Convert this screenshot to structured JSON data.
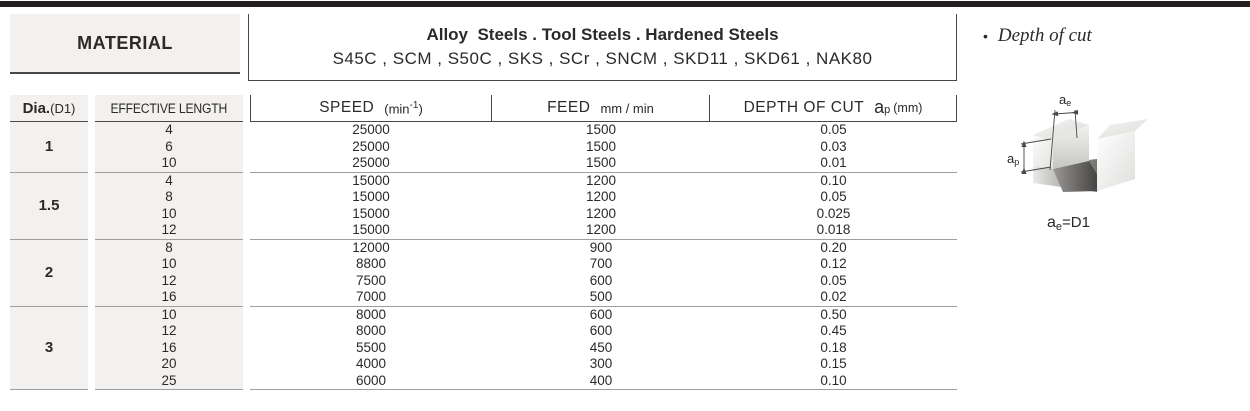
{
  "colors": {
    "top_rule": "#231f1e",
    "cell_bg": "#f2f1ef",
    "box_border": "#4a4745",
    "group_separator": "#a09e9c",
    "text": "#2b2a28"
  },
  "header": {
    "material_label": "MATERIAL",
    "steel_class": "Alloy  Steels . Tool Steels . Hardened Steels",
    "steel_grades": "S45C , SCM , S50C , SKS , SCr , SNCM , SKD11 , SKD61 , NAK80"
  },
  "columns": {
    "dia_label": "Dia.",
    "dia_sub": "(D1)",
    "length_label": "EFFECTIVE LENGTH",
    "speed_label": "SPEED",
    "speed_unit_pre": "(min",
    "speed_unit_sup": "-1",
    "speed_unit_post": ")",
    "feed_label": "FEED",
    "feed_unit": "mm / min",
    "depth_label": "DEPTH OF CUT",
    "depth_symbol": "a",
    "depth_symbol_sub": "p",
    "depth_unit": "(mm)"
  },
  "groups": [
    {
      "dia": "1",
      "rows": [
        [
          "4",
          "25000",
          "1500",
          "0.05"
        ],
        [
          "6",
          "25000",
          "1500",
          "0.03"
        ],
        [
          "10",
          "25000",
          "1500",
          "0.01"
        ]
      ]
    },
    {
      "dia": "1.5",
      "rows": [
        [
          "4",
          "15000",
          "1200",
          "0.10"
        ],
        [
          "8",
          "15000",
          "1200",
          "0.05"
        ],
        [
          "10",
          "15000",
          "1200",
          "0.025"
        ],
        [
          "12",
          "15000",
          "1200",
          "0.018"
        ]
      ]
    },
    {
      "dia": "2",
      "rows": [
        [
          "8",
          "12000",
          "900",
          "0.20"
        ],
        [
          "10",
          "8800",
          "700",
          "0.12"
        ],
        [
          "12",
          "7500",
          "600",
          "0.05"
        ],
        [
          "16",
          "7000",
          "500",
          "0.02"
        ]
      ]
    },
    {
      "dia": "3",
      "rows": [
        [
          "10",
          "8000",
          "600",
          "0.50"
        ],
        [
          "12",
          "8000",
          "600",
          "0.45"
        ],
        [
          "16",
          "5500",
          "450",
          "0.18"
        ],
        [
          "20",
          "4000",
          "300",
          "0.15"
        ],
        [
          "25",
          "6000",
          "400",
          "0.10"
        ]
      ]
    }
  ],
  "side": {
    "bullet": "•",
    "note": "Depth of cut",
    "ae_base": "a",
    "ae_sub": "e",
    "ap_base": "a",
    "ap_sub": "p",
    "eq_base": "a",
    "eq_sub": "e",
    "eq_rest": "=D1"
  }
}
